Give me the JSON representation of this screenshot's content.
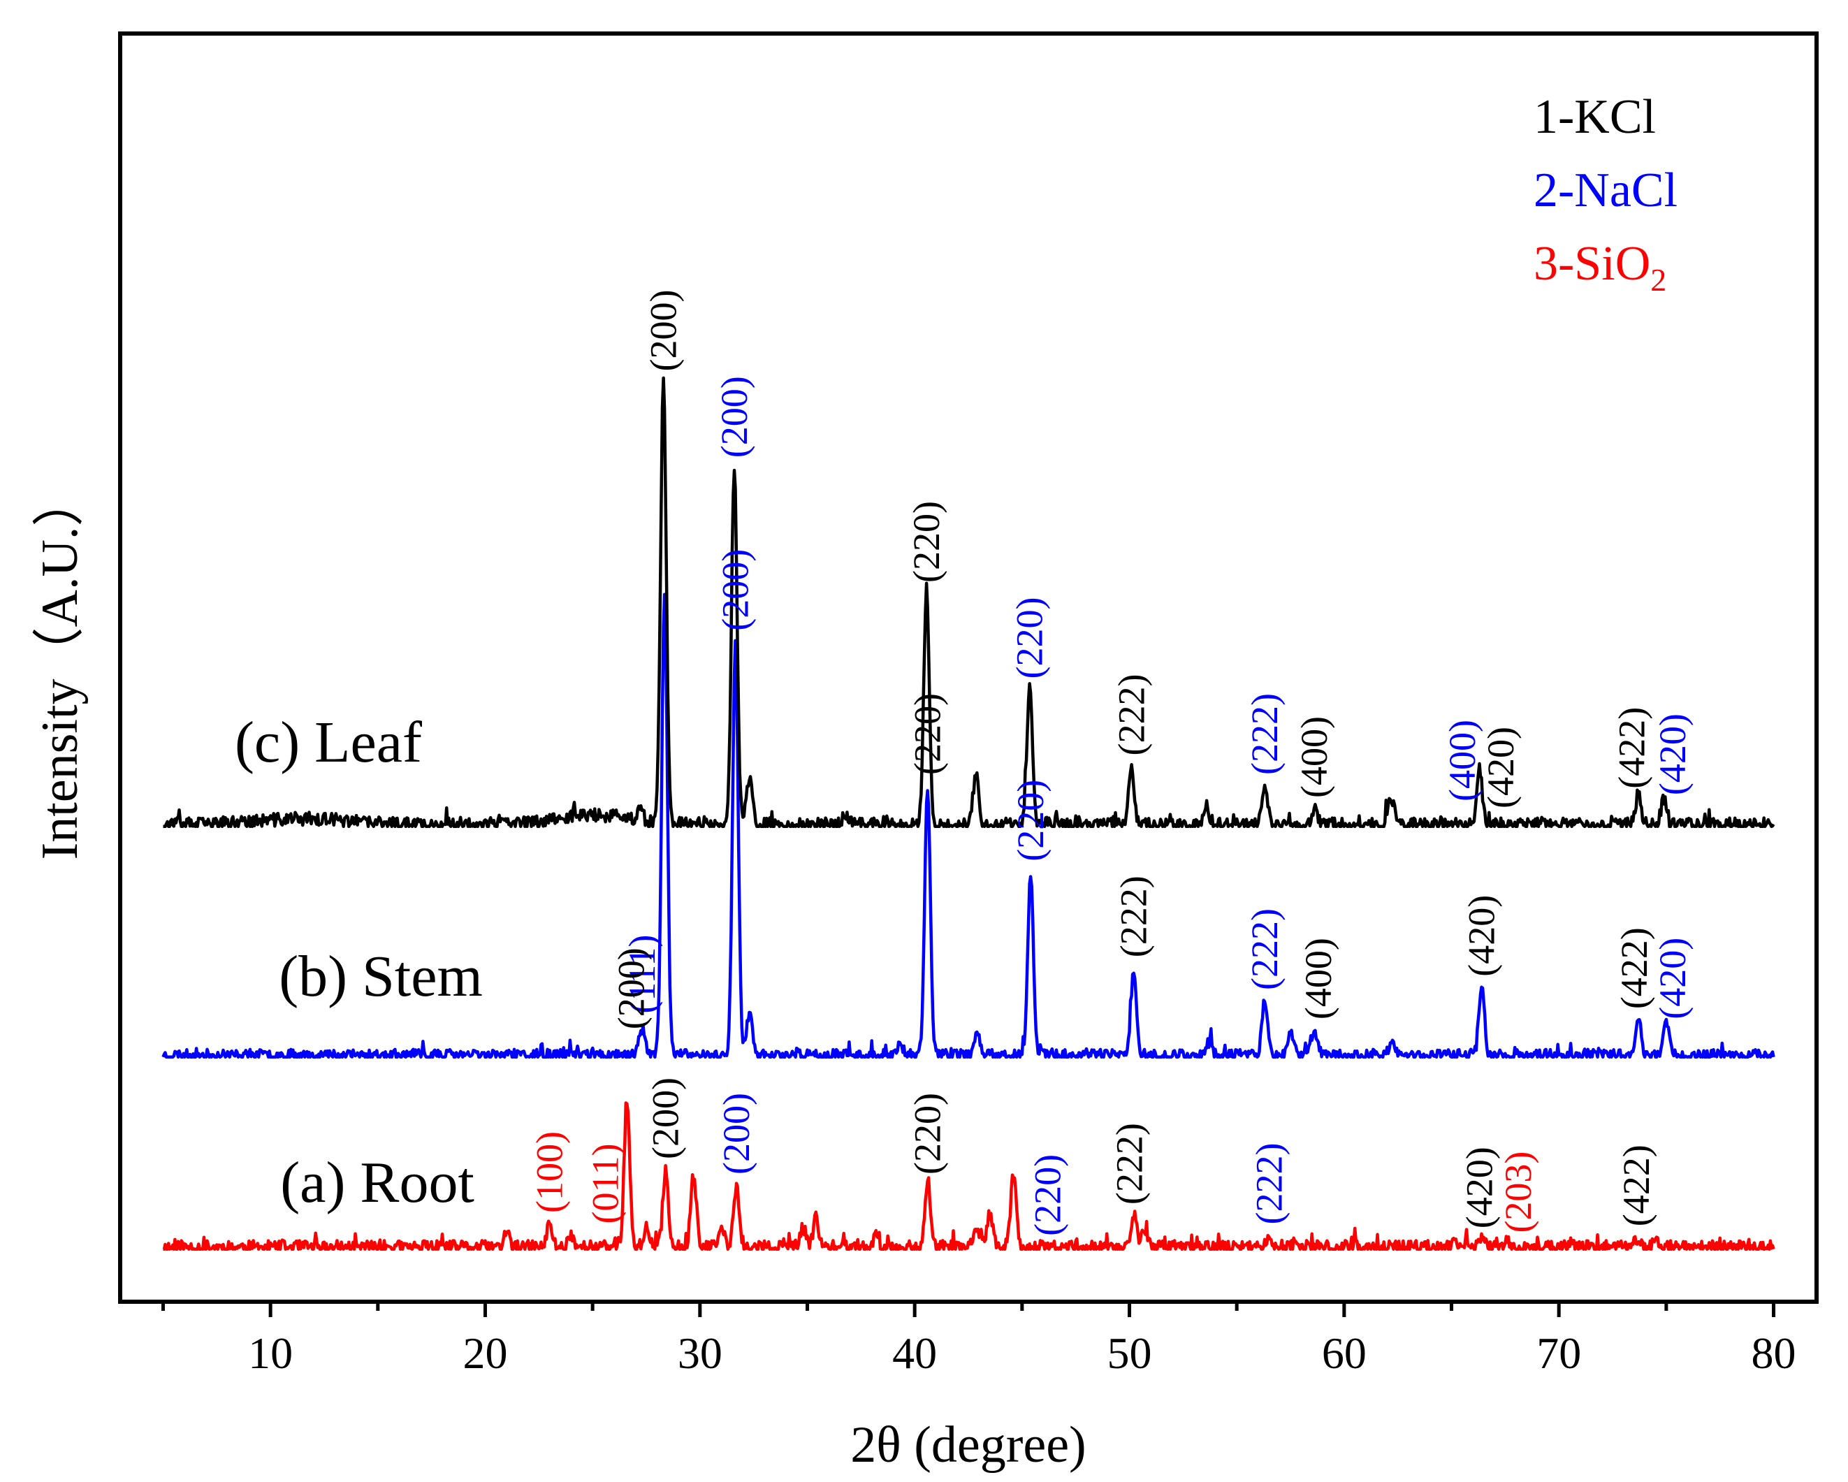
{
  "chart_data": {
    "type": "line",
    "title": "",
    "xlabel": "2θ (degree)",
    "ylabel": "Intensity（A.U.）",
    "xlim": [
      3,
      82
    ],
    "xticks": [
      10,
      20,
      30,
      40,
      50,
      60,
      70,
      80
    ],
    "yticks": [],
    "grid": false,
    "legend": {
      "placement": "top-right",
      "entries": [
        {
          "text": "1-KCl",
          "color": "#000000"
        },
        {
          "text": "2-NaCl",
          "color": "#0000ff"
        },
        {
          "text_main": "3-SiO",
          "text_sub": "2",
          "color": "#ff0000"
        }
      ]
    },
    "series": [
      {
        "id": "root",
        "name": "(a) Root",
        "color": "#ff0000",
        "offset": 0,
        "noise": 3.5,
        "seed": 11,
        "peaks": [
          [
            21.0,
            8
          ],
          [
            23.0,
            12
          ],
          [
            24.0,
            7
          ],
          [
            26.6,
            75
          ],
          [
            27.5,
            10
          ],
          [
            28.4,
            40
          ],
          [
            29.7,
            38
          ],
          [
            31.0,
            10
          ],
          [
            31.7,
            32
          ],
          [
            34.8,
            10
          ],
          [
            35.4,
            15
          ],
          [
            38.2,
            6
          ],
          [
            40.6,
            32
          ],
          [
            42.9,
            10
          ],
          [
            43.5,
            17
          ],
          [
            44.6,
            37
          ],
          [
            50.2,
            18
          ],
          [
            50.7,
            8
          ],
          [
            56.5,
            6
          ],
          [
            65.2,
            4
          ],
          [
            66.4,
            4
          ],
          [
            67.6,
            3
          ],
          [
            73.6,
            5
          ],
          [
            74.5,
            3
          ]
        ]
      },
      {
        "id": "stem",
        "name": "(b) Stem",
        "color": "#0000ff",
        "offset": 100,
        "noise": 3.0,
        "seed": 23,
        "peaks": [
          [
            27.3,
            14
          ],
          [
            28.35,
            240
          ],
          [
            31.65,
            215
          ],
          [
            32.3,
            22
          ],
          [
            39.3,
            6
          ],
          [
            40.6,
            140
          ],
          [
            42.9,
            12
          ],
          [
            45.4,
            95
          ],
          [
            50.2,
            45
          ],
          [
            53.7,
            7
          ],
          [
            56.3,
            28
          ],
          [
            57.5,
            12
          ],
          [
            58.6,
            14
          ],
          [
            62.2,
            6
          ],
          [
            66.4,
            35
          ],
          [
            73.7,
            20
          ],
          [
            75.0,
            16
          ]
        ]
      },
      {
        "id": "leaf",
        "name": "(c) Leaf",
        "color": "#000000",
        "offset": 220,
        "noise": 3.5,
        "seed": 37,
        "peaks": [
          [
            27.2,
            6
          ],
          [
            28.3,
            230
          ],
          [
            31.6,
            185
          ],
          [
            32.3,
            25
          ],
          [
            36.8,
            6
          ],
          [
            40.55,
            120
          ],
          [
            42.85,
            26
          ],
          [
            45.35,
            70
          ],
          [
            50.1,
            30
          ],
          [
            53.6,
            8
          ],
          [
            56.3,
            20
          ],
          [
            58.6,
            8
          ],
          [
            62.2,
            14
          ],
          [
            66.3,
            30
          ],
          [
            73.7,
            16
          ],
          [
            74.9,
            14
          ]
        ]
      }
    ],
    "annotations": [
      {
        "series": "leaf",
        "x": 28.3,
        "text": "(200)",
        "color": "#000000"
      },
      {
        "series": "leaf",
        "x": 31.6,
        "text": "(200)",
        "color": "#0000ff"
      },
      {
        "series": "leaf",
        "x": 40.55,
        "text": "(220)",
        "color": "#000000"
      },
      {
        "series": "leaf",
        "x": 45.35,
        "text": "(220)",
        "color": "#0000ff"
      },
      {
        "series": "leaf",
        "x": 50.1,
        "text": "(222)",
        "color": "#000000"
      },
      {
        "series": "leaf",
        "x": 56.3,
        "text": "(222)",
        "color": "#0000ff"
      },
      {
        "series": "leaf",
        "x": 58.6,
        "text": "(400)",
        "color": "#000000"
      },
      {
        "series": "leaf",
        "x": 65.5,
        "text": "(400)",
        "color": "#0000ff"
      },
      {
        "series": "leaf",
        "x": 67.3,
        "text": "(420)",
        "color": "#000000"
      },
      {
        "series": "leaf",
        "x": 73.4,
        "text": "(422)",
        "color": "#000000"
      },
      {
        "series": "leaf",
        "x": 75.3,
        "text": "(420)",
        "color": "#0000ff"
      },
      {
        "series": "stem",
        "x": 27.3,
        "text": "(111)",
        "color": "#0000ff"
      },
      {
        "series": "stem",
        "x": 26.8,
        "text": "(200)",
        "color": "#000000"
      },
      {
        "series": "stem",
        "x": 31.65,
        "text": "(200)",
        "color": "#0000ff"
      },
      {
        "series": "stem",
        "x": 40.6,
        "text": "(220)",
        "color": "#000000"
      },
      {
        "series": "stem",
        "x": 45.4,
        "text": "(220)",
        "color": "#0000ff"
      },
      {
        "series": "stem",
        "x": 50.2,
        "text": "(222)",
        "color": "#000000"
      },
      {
        "series": "stem",
        "x": 56.3,
        "text": "(222)",
        "color": "#0000ff"
      },
      {
        "series": "stem",
        "x": 58.8,
        "text": "(400)",
        "color": "#000000"
      },
      {
        "series": "stem",
        "x": 66.4,
        "text": "(420)",
        "color": "#000000"
      },
      {
        "series": "stem",
        "x": 73.5,
        "text": "(422)",
        "color": "#000000"
      },
      {
        "series": "stem",
        "x": 75.3,
        "text": "(420)",
        "color": "#0000ff"
      },
      {
        "series": "root",
        "x": 23.0,
        "text": "(100)",
        "color": "#ff0000"
      },
      {
        "series": "root",
        "x": 25.6,
        "text": "(011)",
        "color": "#ff0000"
      },
      {
        "series": "root",
        "x": 28.4,
        "text": "(200)",
        "color": "#000000"
      },
      {
        "series": "root",
        "x": 31.7,
        "text": "(200)",
        "color": "#0000ff"
      },
      {
        "series": "root",
        "x": 40.6,
        "text": "(220)",
        "color": "#000000"
      },
      {
        "series": "root",
        "x": 46.2,
        "text": "(220)",
        "color": "#0000ff"
      },
      {
        "series": "root",
        "x": 50.0,
        "text": "(222)",
        "color": "#000000"
      },
      {
        "series": "root",
        "x": 56.5,
        "text": "(222)",
        "color": "#0000ff"
      },
      {
        "series": "root",
        "x": 66.3,
        "text": "(420)",
        "color": "#000000"
      },
      {
        "series": "root",
        "x": 68.1,
        "text": "(203)",
        "color": "#ff0000"
      },
      {
        "series": "root",
        "x": 73.6,
        "text": "(422)",
        "color": "#000000"
      }
    ]
  }
}
